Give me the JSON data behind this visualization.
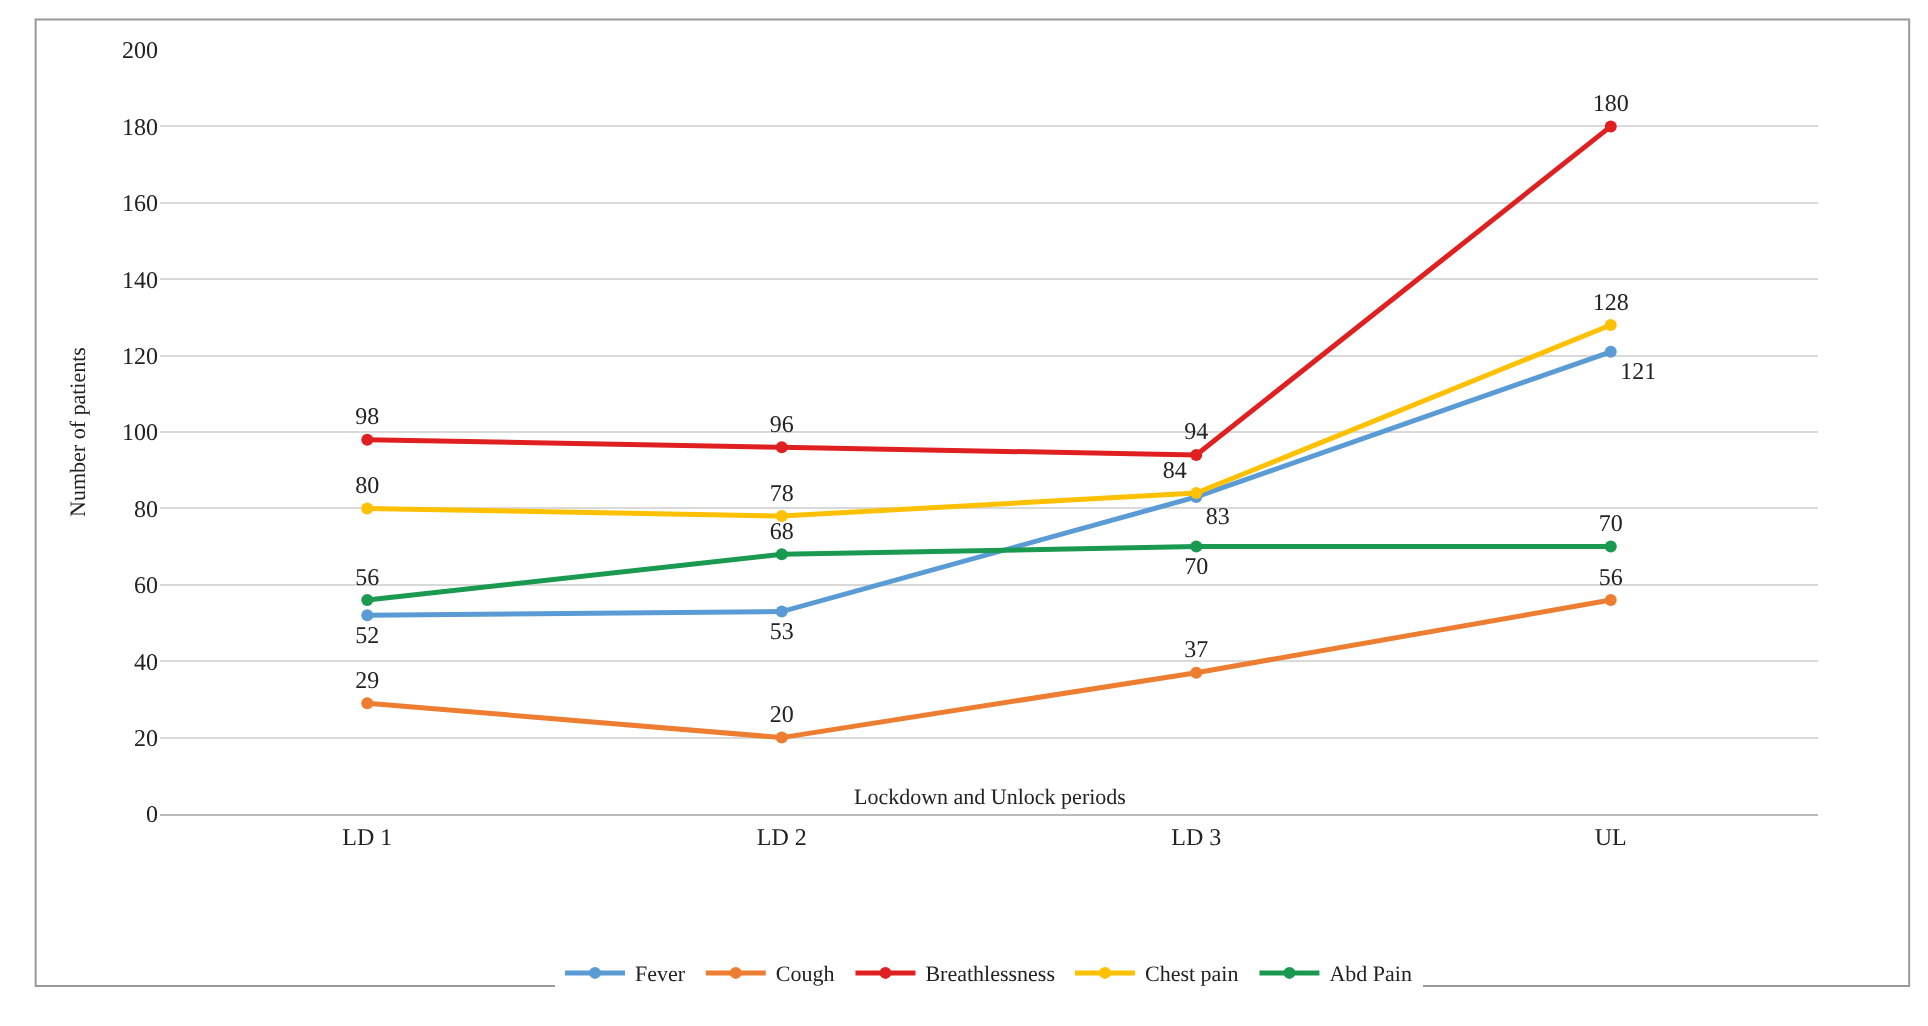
{
  "chart_data": {
    "type": "line",
    "xlabel": "Lockdown and Unlock periods",
    "ylabel": "Number of patients",
    "categories": [
      "LD 1",
      "LD 2",
      "LD 3",
      "UL"
    ],
    "series": [
      {
        "name": "Fever",
        "color": "#5b9bd5",
        "values": [
          52,
          53,
          83,
          121
        ]
      },
      {
        "name": "Cough",
        "color": "#ed7d31",
        "values": [
          29,
          20,
          37,
          56
        ]
      },
      {
        "name": "Breathlessness",
        "color": "#e02020",
        "values": [
          98,
          96,
          94,
          180
        ]
      },
      {
        "name": "Chest pain",
        "color": "#ffc000",
        "values": [
          80,
          78,
          84,
          128
        ]
      },
      {
        "name": "Abd Pain",
        "color": "#1a9a50",
        "values": [
          56,
          68,
          70,
          70
        ]
      }
    ],
    "ylim": [
      0,
      200
    ],
    "yticks": [
      0,
      20,
      40,
      60,
      80,
      100,
      120,
      140,
      160,
      180,
      200
    ],
    "grid": "y",
    "legend": "bottom",
    "marker": "circle",
    "line_style": "solid",
    "data_labels": true
  }
}
